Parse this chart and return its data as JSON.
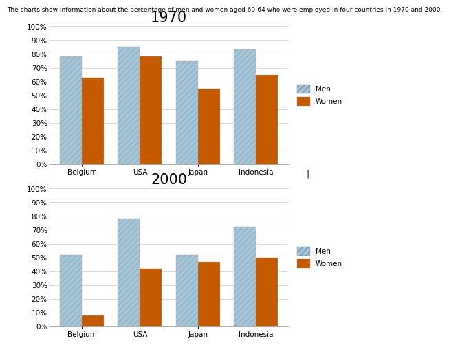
{
  "subtitle": "The charts show information about the percentage of men and women aged 60-64 who were employed in four countries in 1970 and 2000.",
  "countries": [
    "Belgium",
    "USA",
    "Japan",
    "Indonesia"
  ],
  "chart1": {
    "title": "1970",
    "men": [
      78,
      85,
      75,
      83
    ],
    "women": [
      63,
      78,
      55,
      65
    ]
  },
  "chart2": {
    "title": "2000",
    "men": [
      52,
      78,
      52,
      72
    ],
    "women": [
      8,
      42,
      47,
      50
    ]
  },
  "men_color": "#9DC8E0",
  "women_color": "#C45A00",
  "bar_width": 0.38,
  "ylim": [
    0,
    100
  ],
  "yticks": [
    0,
    10,
    20,
    30,
    40,
    50,
    60,
    70,
    80,
    90,
    100
  ],
  "ytick_labels": [
    "0%",
    "10%",
    "20%",
    "30%",
    "40%",
    "50%",
    "60%",
    "70%",
    "80%",
    "90%",
    "100%"
  ],
  "subtitle_fontsize": 6.5,
  "title_fontsize": 15,
  "tick_fontsize": 7.5,
  "legend_fontsize": 7.5,
  "background_color": "#ffffff"
}
